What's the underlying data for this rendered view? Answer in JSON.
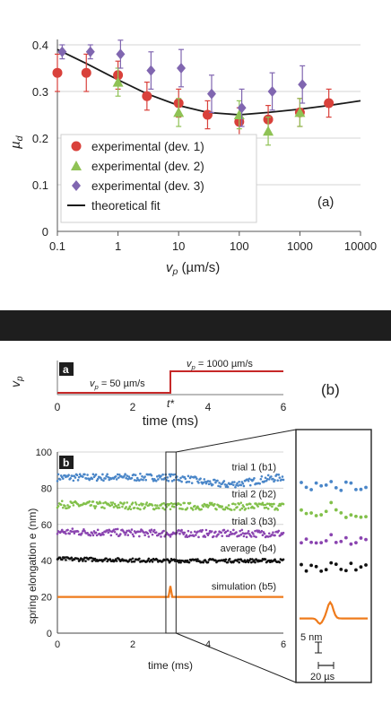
{
  "chart_data": [
    {
      "panel_label": "(a)",
      "type": "scatter",
      "xscale": "log",
      "xlabel": "v",
      "xlabel_sub": "p",
      "xlabel_unit": " (µm/s)",
      "ylabel": "µ",
      "ylabel_sub": "d",
      "xlim": [
        0.1,
        10000
      ],
      "ylim": [
        0,
        0.4
      ],
      "xticks": [
        0.1,
        1,
        10,
        100,
        1000,
        10000
      ],
      "xtick_labels": [
        "0.1",
        "1",
        "10",
        "100",
        "1000",
        "10000"
      ],
      "yticks": [
        0,
        0.1,
        0.2,
        0.3,
        0.4
      ],
      "ytick_labels": [
        "0",
        "0.1",
        "0.2",
        "0.3",
        "0.4"
      ],
      "grid": "horizontal",
      "legend_position": "bottom-left",
      "series": [
        {
          "name": "experimental (dev. 1)",
          "marker": "circle",
          "color": "#d9413b",
          "x": [
            0.1,
            0.3,
            1,
            3,
            10,
            30,
            100,
            300,
            1000,
            3000
          ],
          "y": [
            0.34,
            0.34,
            0.335,
            0.29,
            0.275,
            0.25,
            0.235,
            0.24,
            0.255,
            0.275
          ],
          "err": [
            0.04,
            0.04,
            0.03,
            0.03,
            0.03,
            0.03,
            0.03,
            0.03,
            0.03,
            0.03
          ]
        },
        {
          "name": "experimental (dev. 2)",
          "marker": "triangle",
          "color": "#8fc255",
          "x": [
            1,
            10,
            100,
            300,
            1000
          ],
          "y": [
            0.32,
            0.255,
            0.25,
            0.215,
            0.255
          ],
          "err": [
            0.03,
            0.03,
            0.03,
            0.03,
            0.03
          ]
        },
        {
          "name": "experimental (dev. 3)",
          "marker": "diamond",
          "color": "#8066b0",
          "x": [
            0.12,
            0.35,
            1.1,
            3.5,
            11,
            35,
            110,
            350,
            1100
          ],
          "y": [
            0.385,
            0.385,
            0.38,
            0.345,
            0.35,
            0.295,
            0.265,
            0.3,
            0.315
          ],
          "err": [
            0.015,
            0.015,
            0.03,
            0.04,
            0.04,
            0.04,
            0.04,
            0.04,
            0.04
          ]
        },
        {
          "name": "theoretical fit",
          "type": "line",
          "color": "#1a1a1a",
          "x": [
            0.1,
            0.3,
            1,
            3,
            10,
            30,
            100,
            300,
            1000,
            3000,
            10000
          ],
          "y": [
            0.39,
            0.36,
            0.325,
            0.295,
            0.27,
            0.255,
            0.25,
            0.255,
            0.262,
            0.27,
            0.28
          ]
        }
      ]
    },
    {
      "panel_label": "a",
      "type": "line",
      "ylabel": "v",
      "ylabel_sub": "p",
      "xlabel": "time (ms)",
      "xlim": [
        0,
        6
      ],
      "xticks": [
        0,
        2,
        4,
        6
      ],
      "xtick_labels": [
        "0",
        "2",
        "4",
        "6"
      ],
      "marker_label": "t*",
      "step_time": 3,
      "annotations": [
        {
          "text": "v",
          "sub": "p",
          "rest": " = 50 µm/s"
        },
        {
          "text": "v",
          "sub": "p",
          "rest": " = 1000 µm/s"
        }
      ],
      "series": [
        {
          "color": "#c62828",
          "x": [
            0,
            3,
            3,
            6
          ],
          "y": [
            50,
            50,
            1000,
            1000
          ]
        }
      ]
    },
    {
      "panel_label": "b",
      "outer_label": "(b)",
      "type": "line",
      "ylabel": "spring elongation e (nm)",
      "xlabel": "time (ms)",
      "xlim": [
        0,
        6
      ],
      "ylim": [
        0,
        100
      ],
      "xticks": [
        0,
        2,
        4,
        6
      ],
      "xtick_labels": [
        "0",
        "2",
        "4",
        "6"
      ],
      "yticks": [
        0,
        20,
        40,
        60,
        80,
        100
      ],
      "ytick_labels": [
        "0",
        "20",
        "40",
        "60",
        "80",
        "100"
      ],
      "grid": "horizontal",
      "series": [
        {
          "name": "trial 1 (b1)",
          "color": "#4a86c8",
          "level": 86,
          "noise": 2.0,
          "x": [
            0,
            3,
            3.5,
            4,
            4.5,
            5,
            5.5,
            6
          ],
          "y": [
            86,
            86,
            85,
            83,
            82,
            83,
            85,
            86
          ]
        },
        {
          "name": "trial 2 (b2)",
          "color": "#82c04a",
          "level": 71,
          "noise": 2.0,
          "x": [
            0,
            3,
            6
          ],
          "y": [
            71,
            70,
            70
          ]
        },
        {
          "name": "trial 3 (b3)",
          "color": "#8a44b0",
          "level": 56,
          "noise": 2.0,
          "x": [
            0,
            3,
            6
          ],
          "y": [
            56,
            55,
            55
          ]
        },
        {
          "name": "average (b4)",
          "color": "#111111",
          "level": 41,
          "noise": 1.0,
          "x": [
            0,
            3,
            6
          ],
          "y": [
            41,
            40,
            40
          ]
        },
        {
          "name": "simulation (b5)",
          "color": "#ef7b1c",
          "level": 20,
          "noise": 0,
          "x": [
            0,
            2.95,
            3.0,
            3.05,
            3.15,
            6
          ],
          "y": [
            20,
            20,
            26,
            20,
            20,
            20
          ]
        }
      ],
      "inset": {
        "scale_y_label": "5 nm",
        "scale_x_label": "20 µs"
      }
    }
  ]
}
